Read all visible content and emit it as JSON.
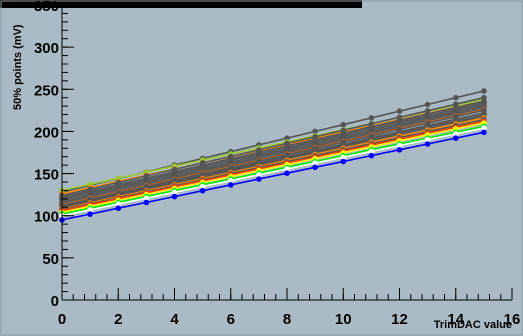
{
  "chart_data": {
    "type": "line",
    "title": "",
    "xlabel": "TrimDAC value",
    "ylabel": "50% points (mV)",
    "xlim": [
      0,
      16
    ],
    "ylim": [
      0,
      350
    ],
    "x_ticks": [
      "0",
      "2",
      "4",
      "6",
      "8",
      "10",
      "12",
      "14",
      "16"
    ],
    "y_ticks": [
      "0",
      "50",
      "100",
      "150",
      "200",
      "250",
      "300",
      "350"
    ],
    "x": [
      0,
      1,
      2,
      3,
      4,
      5,
      6,
      7,
      8,
      9,
      10,
      11,
      12,
      13,
      14,
      15
    ],
    "grid": false,
    "legend": "none",
    "series": [
      {
        "color": "#555555",
        "start": 128,
        "end": 248
      },
      {
        "color": "#9acd32",
        "start": 130,
        "end": 238
      },
      {
        "color": "#ff8c00",
        "start": 126,
        "end": 236
      },
      {
        "color": "#555555",
        "start": 124,
        "end": 240
      },
      {
        "color": "#555555",
        "start": 122,
        "end": 236
      },
      {
        "color": "#555555",
        "start": 120,
        "end": 234
      },
      {
        "color": "#555555",
        "start": 118,
        "end": 232
      },
      {
        "color": "#555555",
        "start": 116,
        "end": 230
      },
      {
        "color": "#555555",
        "start": 114,
        "end": 228
      },
      {
        "color": "#d2691e",
        "start": 113,
        "end": 226
      },
      {
        "color": "#555555",
        "start": 112,
        "end": 225
      },
      {
        "color": "#555555",
        "start": 111,
        "end": 222
      },
      {
        "color": "#555555",
        "start": 110,
        "end": 220
      },
      {
        "color": "#555555",
        "start": 109,
        "end": 218
      },
      {
        "color": "#ff8c00",
        "start": 108,
        "end": 216
      },
      {
        "color": "#555555",
        "start": 107,
        "end": 214
      },
      {
        "color": "#ff4500",
        "start": 106,
        "end": 212
      },
      {
        "color": "#ffff00",
        "start": 104,
        "end": 210
      },
      {
        "color": "#00ee00",
        "start": 102,
        "end": 206
      },
      {
        "color": "#ffffff",
        "start": 100,
        "end": 204
      },
      {
        "color": "#0000ff",
        "start": 95,
        "end": 199
      }
    ]
  }
}
